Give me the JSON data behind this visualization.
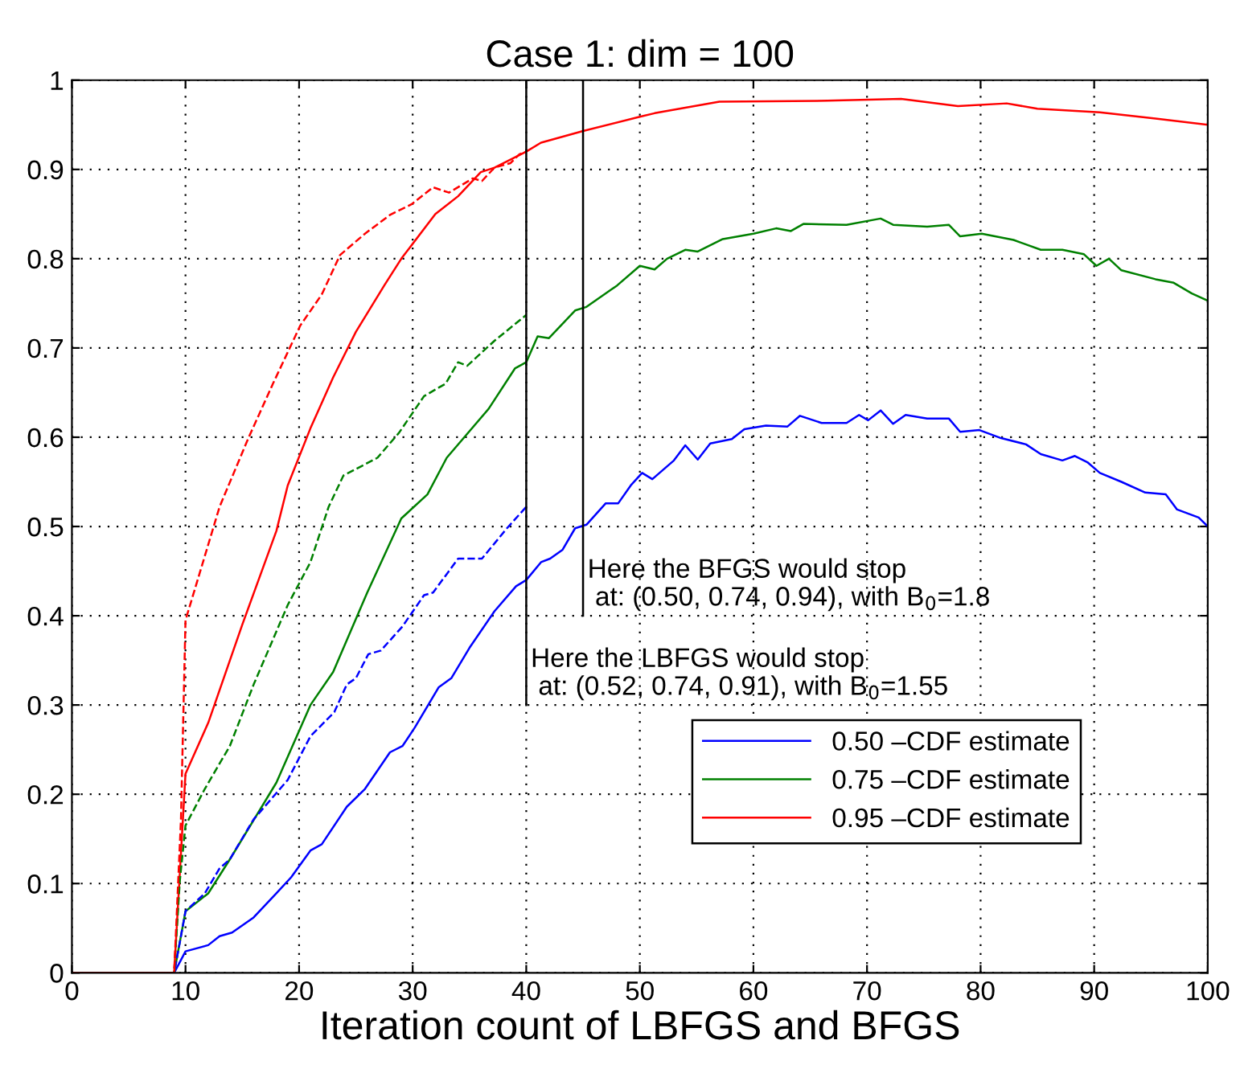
{
  "chart_data": {
    "type": "line",
    "title": "Case 1: dim = 100",
    "xlabel": "Iteration count of LBFGS and BFGS",
    "xlim": [
      0,
      100
    ],
    "xticks": [
      0,
      10,
      20,
      30,
      40,
      50,
      60,
      70,
      80,
      90,
      100
    ],
    "ylim": [
      0,
      1
    ],
    "yticks": [
      0,
      0.1,
      0.2,
      0.3,
      0.4,
      0.5,
      0.6,
      0.7,
      0.8,
      0.9,
      1
    ],
    "grid": true,
    "legend": "bottom right",
    "line_style": "solid",
    "series": [
      {
        "name": "0.50 –CDF estimate",
        "color": "#0000ff",
        "x": [
          0,
          9,
          10,
          12,
          13,
          14.1,
          16,
          18,
          19.3,
          21,
          22,
          24.2,
          25.8,
          28,
          29.1,
          30.2,
          32.3,
          33.4,
          35,
          37.2,
          39.1,
          40,
          41.3,
          42.1,
          43.2,
          44.3,
          45.3,
          47,
          48.1,
          49.2,
          50.2,
          51.1,
          53,
          54,
          55.1,
          56.2,
          58.1,
          59.2,
          61.1,
          63,
          64.1,
          66,
          68.2,
          69.3,
          70.1,
          71.2,
          72.3,
          73.4,
          75.3,
          77.2,
          78.2,
          79.9,
          81.8,
          84,
          85.3,
          87.2,
          88.3,
          89.4,
          90.5,
          92.4,
          94.5,
          96.3,
          97.3,
          99.2,
          100
        ],
        "values": [
          0,
          0,
          0.024,
          0.031,
          0.041,
          0.045,
          0.062,
          0.089,
          0.107,
          0.137,
          0.144,
          0.186,
          0.206,
          0.247,
          0.254,
          0.275,
          0.32,
          0.33,
          0.364,
          0.405,
          0.433,
          0.44,
          0.46,
          0.464,
          0.474,
          0.498,
          0.502,
          0.526,
          0.526,
          0.546,
          0.56,
          0.553,
          0.574,
          0.591,
          0.575,
          0.593,
          0.598,
          0.609,
          0.613,
          0.612,
          0.624,
          0.616,
          0.616,
          0.625,
          0.619,
          0.63,
          0.615,
          0.625,
          0.621,
          0.621,
          0.606,
          0.608,
          0.599,
          0.592,
          0.581,
          0.574,
          0.579,
          0.572,
          0.56,
          0.55,
          0.538,
          0.536,
          0.519,
          0.51,
          0.5
        ]
      },
      {
        "name": "0.75 –CDF estimate",
        "color": "#008000",
        "x": [
          0,
          9,
          10,
          12,
          13.9,
          18,
          21,
          23,
          26,
          29,
          31.3,
          33,
          36.7,
          39,
          40,
          41,
          42,
          44.3,
          45.3,
          48,
          50,
          51.3,
          52.4,
          54,
          55.1,
          57.3,
          60,
          62,
          63.3,
          64.4,
          68.2,
          71.2,
          72.3,
          75.3,
          77.2,
          78.2,
          80.1,
          82.9,
          85.3,
          87.2,
          89.1,
          90.2,
          91.3,
          92.4,
          95.4,
          97,
          98.6,
          100
        ],
        "values": [
          0,
          0,
          0.069,
          0.089,
          0.127,
          0.213,
          0.3,
          0.337,
          0.426,
          0.509,
          0.536,
          0.577,
          0.632,
          0.677,
          0.684,
          0.713,
          0.711,
          0.742,
          0.746,
          0.77,
          0.792,
          0.788,
          0.8,
          0.81,
          0.808,
          0.822,
          0.828,
          0.834,
          0.831,
          0.839,
          0.838,
          0.845,
          0.838,
          0.836,
          0.838,
          0.825,
          0.828,
          0.821,
          0.81,
          0.81,
          0.805,
          0.792,
          0.8,
          0.787,
          0.777,
          0.773,
          0.761,
          0.753
        ]
      },
      {
        "name": "0.95 –CDF estimate",
        "color": "#ff0000",
        "x": [
          0,
          9,
          10,
          12,
          15,
          18,
          19,
          21,
          23,
          25,
          27.5,
          29,
          32,
          34,
          36,
          37.2,
          40,
          41.3,
          45,
          50,
          51.3,
          57,
          66.5,
          73,
          78,
          82.3,
          85,
          90.5,
          95.4,
          100
        ],
        "values": [
          0,
          0,
          0.223,
          0.28,
          0.39,
          0.495,
          0.546,
          0.61,
          0.667,
          0.718,
          0.77,
          0.8,
          0.85,
          0.87,
          0.897,
          0.902,
          0.92,
          0.93,
          0.943,
          0.959,
          0.963,
          0.976,
          0.977,
          0.979,
          0.971,
          0.974,
          0.968,
          0.964,
          0.957,
          0.95
        ]
      },
      {
        "color": "#0000ff",
        "line_style": "dashed",
        "x": [
          0,
          9,
          9.6,
          10,
          11.7,
          13,
          13.9,
          16,
          19,
          21,
          23.1,
          24.2,
          25,
          26.1,
          27.2,
          29.1,
          31,
          31.8,
          34,
          36.1,
          38.3,
          40
        ],
        "values": [
          0,
          0,
          0.041,
          0.069,
          0.089,
          0.117,
          0.127,
          0.172,
          0.216,
          0.265,
          0.292,
          0.323,
          0.33,
          0.357,
          0.361,
          0.388,
          0.423,
          0.426,
          0.464,
          0.464,
          0.498,
          0.522
        ]
      },
      {
        "color": "#008000",
        "line_style": "dashed",
        "x": [
          0,
          9,
          9.5,
          10,
          11.7,
          13.9,
          16,
          19,
          21,
          22.6,
          23.9,
          26.9,
          28.8,
          31,
          32.9,
          34,
          34.8,
          37.2,
          40
        ],
        "values": [
          0,
          0,
          0.103,
          0.165,
          0.206,
          0.254,
          0.323,
          0.412,
          0.46,
          0.522,
          0.557,
          0.577,
          0.605,
          0.646,
          0.66,
          0.684,
          0.68,
          0.708,
          0.737
        ]
      },
      {
        "color": "#ff0000",
        "line_style": "dashed",
        "x": [
          0,
          9,
          9.6,
          10,
          10.9,
          13,
          15.5,
          17.7,
          20.1,
          22,
          23.6,
          25.8,
          28,
          29.9,
          31.8,
          33.2,
          35.3,
          36.1,
          37.2,
          38.6,
          39.4,
          40
        ],
        "values": [
          0,
          0,
          0.172,
          0.395,
          0.433,
          0.522,
          0.598,
          0.66,
          0.725,
          0.76,
          0.804,
          0.828,
          0.849,
          0.861,
          0.88,
          0.874,
          0.89,
          0.887,
          0.902,
          0.907,
          0.917,
          0.92
        ]
      }
    ],
    "ref_lines": [
      {
        "axis": "x",
        "value": 40,
        "color": "#000000"
      },
      {
        "axis": "x",
        "value": 45,
        "color": "#000000"
      }
    ],
    "annotations": [
      {
        "text": "Here the LBFGS would stop\n at: (0.52, 0.74, 0.91), with B$_{0}$=1.55",
        "x": 40,
        "y": 0.3
      },
      {
        "text": "Here the BFGS would stop\n at: (0.50, 0.74, 0.94), with B$_{0}$=1.8",
        "x": 45,
        "y": 0.4
      }
    ]
  }
}
